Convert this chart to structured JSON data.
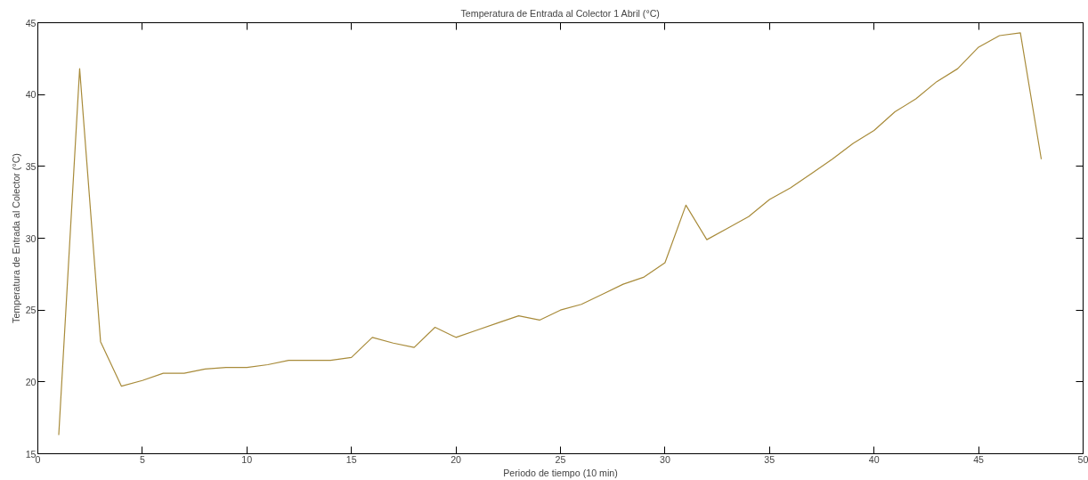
{
  "chart_data": {
    "type": "line",
    "title": "Temperatura de Entrada al Colector 1 Abril (°C)",
    "xlabel": "Periodo de tiempo (10 min)",
    "ylabel": "Temperatura de Entrada al Colector (°C)",
    "x": [
      1,
      2,
      3,
      4,
      5,
      6,
      7,
      8,
      9,
      10,
      11,
      12,
      13,
      14,
      15,
      16,
      17,
      18,
      19,
      20,
      21,
      22,
      23,
      24,
      25,
      26,
      27,
      28,
      29,
      30,
      31,
      32,
      33,
      34,
      35,
      36,
      37,
      38,
      39,
      40,
      41,
      42,
      43,
      44,
      45,
      46,
      47,
      48
    ],
    "series": [
      {
        "color": "#a88b3a",
        "values": [
          16.3,
          41.8,
          22.8,
          19.7,
          20.1,
          20.6,
          20.6,
          20.9,
          21.0,
          21.0,
          21.2,
          21.5,
          21.5,
          21.5,
          21.7,
          23.1,
          22.7,
          22.4,
          23.8,
          23.1,
          23.6,
          24.1,
          24.6,
          24.3,
          25.0,
          25.4,
          26.1,
          26.8,
          27.3,
          28.3,
          32.3,
          29.9,
          30.7,
          31.5,
          32.7,
          33.5,
          34.5,
          35.5,
          36.6,
          37.5,
          38.8,
          39.7,
          40.9,
          41.8,
          43.3,
          44.1,
          44.3,
          35.5
        ]
      }
    ],
    "xlim": [
      0,
      50
    ],
    "ylim": [
      15,
      45
    ],
    "xticks": [
      0,
      5,
      10,
      15,
      20,
      25,
      30,
      35,
      40,
      45,
      50
    ],
    "yticks": [
      15,
      20,
      25,
      30,
      35,
      40,
      45
    ],
    "grid": false,
    "marker": "none",
    "line_style": "solid"
  }
}
